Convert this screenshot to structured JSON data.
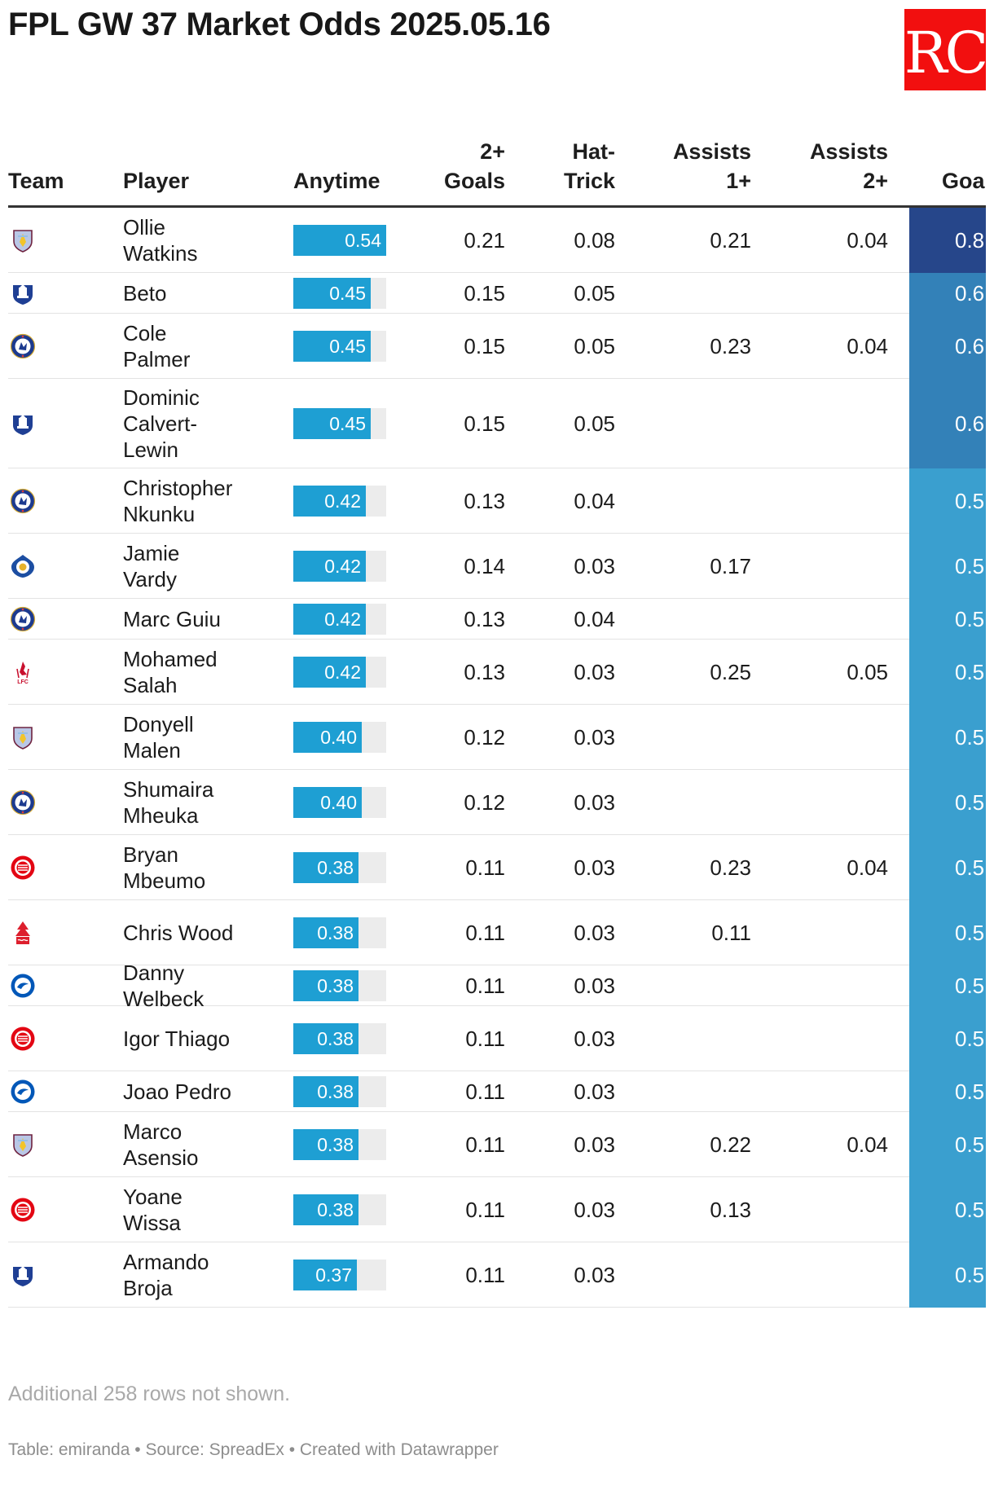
{
  "title": "FPL GW 37 Market Odds 2025.05.16",
  "logo": {
    "text": "RC",
    "bg_color": "#f20f0f",
    "text_color": "#ffffff"
  },
  "colors": {
    "bar": "#1e9fd3",
    "bar_track": "#ececec",
    "goal_scale_low": "#3a9fcf",
    "goal_scale_high": "#26468a"
  },
  "headers": {
    "team": "Team",
    "player": "Player",
    "anytime": "Anytime",
    "goals2": [
      "2+",
      "Goals"
    ],
    "hattrick": [
      "Hat-",
      "Trick"
    ],
    "assists1": [
      "Assists",
      "1+"
    ],
    "assists2": [
      "Assists",
      "2+"
    ],
    "goal": "Goal"
  },
  "rows": [
    {
      "team": "Aston Villa",
      "crest": "villa-crest",
      "player": [
        "Ollie",
        "Watkins"
      ],
      "anytime": "0.54",
      "goals2": "0.21",
      "hattrick": "0.08",
      "assists1": "0.21",
      "assists2": "0.04",
      "goal": "0.8"
    },
    {
      "team": "Everton",
      "crest": "everton-crest",
      "player": [
        "Beto"
      ],
      "anytime": "0.45",
      "goals2": "0.15",
      "hattrick": "0.05",
      "assists1": "",
      "assists2": "",
      "goal": "0.6"
    },
    {
      "team": "Chelsea",
      "crest": "chelsea-crest",
      "player": [
        "Cole",
        "Palmer"
      ],
      "anytime": "0.45",
      "goals2": "0.15",
      "hattrick": "0.05",
      "assists1": "0.23",
      "assists2": "0.04",
      "goal": "0.6"
    },
    {
      "team": "Everton",
      "crest": "everton-crest",
      "player": [
        "Dominic",
        "Calvert-",
        "Lewin"
      ],
      "anytime": "0.45",
      "goals2": "0.15",
      "hattrick": "0.05",
      "assists1": "",
      "assists2": "",
      "goal": "0.6"
    },
    {
      "team": "Chelsea",
      "crest": "chelsea-crest",
      "player": [
        "Christopher",
        "Nkunku"
      ],
      "anytime": "0.42",
      "goals2": "0.13",
      "hattrick": "0.04",
      "assists1": "",
      "assists2": "",
      "goal": "0.5"
    },
    {
      "team": "Leicester City",
      "crest": "leicester-crest",
      "player": [
        "Jamie",
        "Vardy"
      ],
      "anytime": "0.42",
      "goals2": "0.14",
      "hattrick": "0.03",
      "assists1": "0.17",
      "assists2": "",
      "goal": "0.5"
    },
    {
      "team": "Chelsea",
      "crest": "chelsea-crest",
      "player": [
        "Marc Guiu"
      ],
      "anytime": "0.42",
      "goals2": "0.13",
      "hattrick": "0.04",
      "assists1": "",
      "assists2": "",
      "goal": "0.5"
    },
    {
      "team": "Liverpool",
      "crest": "liverpool-crest",
      "player": [
        "Mohamed",
        "Salah"
      ],
      "anytime": "0.42",
      "goals2": "0.13",
      "hattrick": "0.03",
      "assists1": "0.25",
      "assists2": "0.05",
      "goal": "0.5"
    },
    {
      "team": "Aston Villa",
      "crest": "villa-crest",
      "player": [
        "Donyell",
        "Malen"
      ],
      "anytime": "0.40",
      "goals2": "0.12",
      "hattrick": "0.03",
      "assists1": "",
      "assists2": "",
      "goal": "0.5"
    },
    {
      "team": "Chelsea",
      "crest": "chelsea-crest",
      "player": [
        "Shumaira",
        "Mheuka"
      ],
      "anytime": "0.40",
      "goals2": "0.12",
      "hattrick": "0.03",
      "assists1": "",
      "assists2": "",
      "goal": "0.5"
    },
    {
      "team": "Brentford",
      "crest": "brentford-crest",
      "player": [
        "Bryan",
        "Mbeumo"
      ],
      "anytime": "0.38",
      "goals2": "0.11",
      "hattrick": "0.03",
      "assists1": "0.23",
      "assists2": "0.04",
      "goal": "0.5"
    },
    {
      "team": "Nottingham Forest",
      "crest": "forest-crest",
      "player": [
        "Chris Wood"
      ],
      "anytime": "0.38",
      "goals2": "0.11",
      "hattrick": "0.03",
      "assists1": "0.11",
      "assists2": "",
      "goal": "0.5"
    },
    {
      "team": "Brighton",
      "crest": "brighton-crest",
      "player": [
        "Danny",
        "Welbeck"
      ],
      "anytime": "0.38",
      "goals2": "0.11",
      "hattrick": "0.03",
      "assists1": "",
      "assists2": "",
      "goal": "0.5"
    },
    {
      "team": "Brentford",
      "crest": "brentford-crest",
      "player": [
        "Igor Thiago"
      ],
      "anytime": "0.38",
      "goals2": "0.11",
      "hattrick": "0.03",
      "assists1": "",
      "assists2": "",
      "goal": "0.5"
    },
    {
      "team": "Brighton",
      "crest": "brighton-crest",
      "player": [
        "Joao Pedro"
      ],
      "anytime": "0.38",
      "goals2": "0.11",
      "hattrick": "0.03",
      "assists1": "",
      "assists2": "",
      "goal": "0.5"
    },
    {
      "team": "Aston Villa",
      "crest": "villa-crest",
      "player": [
        "Marco",
        "Asensio"
      ],
      "anytime": "0.38",
      "goals2": "0.11",
      "hattrick": "0.03",
      "assists1": "0.22",
      "assists2": "0.04",
      "goal": "0.5"
    },
    {
      "team": "Brentford",
      "crest": "brentford-crest",
      "player": [
        "Yoane",
        "Wissa"
      ],
      "anytime": "0.38",
      "goals2": "0.11",
      "hattrick": "0.03",
      "assists1": "0.13",
      "assists2": "",
      "goal": "0.5"
    },
    {
      "team": "Everton",
      "crest": "everton-crest",
      "player": [
        "Armando",
        "Broja"
      ],
      "anytime": "0.37",
      "goals2": "0.11",
      "hattrick": "0.03",
      "assists1": "",
      "assists2": "",
      "goal": "0.5"
    }
  ],
  "note": "Additional 258 rows not shown.",
  "footer": "Table: emiranda • Source: SpreadEx • Created with Datawrapper"
}
